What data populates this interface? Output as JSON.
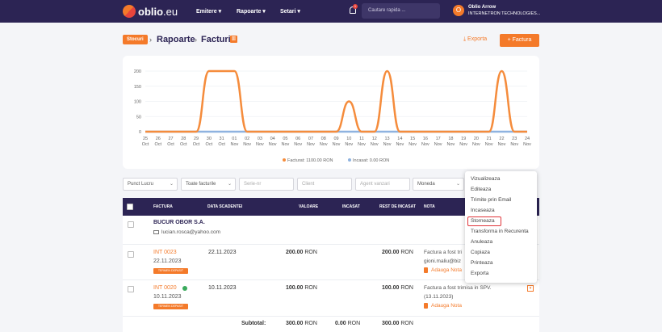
{
  "header": {
    "logo_text": "oblio",
    "logo_suffix": ".eu",
    "nav": [
      {
        "label": "Emitere ▾"
      },
      {
        "label": "Rapoarte ▾"
      },
      {
        "label": "Setari ▾"
      }
    ],
    "notifications_badge": "1",
    "search_placeholder": "Cautare rapida ...",
    "user_initial": "O",
    "user_name": "Oblio Arrow",
    "user_company": "INTERNETRON TECHNOLOGIES..."
  },
  "breadcrumb": {
    "stocuri": "Stocuri",
    "rapoarte": "Rapoarte",
    "facturi": "Facturi"
  },
  "actions": {
    "export": "Exporta",
    "add_factura": "+ Factura"
  },
  "chart_data": {
    "type": "line",
    "x": [
      "25 Oct",
      "26 Oct",
      "27 Oct",
      "28 Oct",
      "29 Oct",
      "30 Oct",
      "31 Oct",
      "01 Nov",
      "02 Nov",
      "03 Nov",
      "04 Nov",
      "05 Nov",
      "06 Nov",
      "07 Nov",
      "08 Nov",
      "09 Nov",
      "10 Nov",
      "11 Nov",
      "12 Nov",
      "13 Nov",
      "14 Nov",
      "15 Nov",
      "16 Nov",
      "17 Nov",
      "18 Nov",
      "19 Nov",
      "20 Nov",
      "21 Nov",
      "22 Nov",
      "23 Nov",
      "24 Nov"
    ],
    "yticks": [
      0,
      50,
      100,
      150,
      200
    ],
    "ylim": [
      0,
      200
    ],
    "series": [
      {
        "name": "Facturat: 1100.00 RON",
        "color": "#f58c3c",
        "values": [
          0,
          0,
          0,
          0,
          0,
          200,
          200,
          200,
          0,
          0,
          0,
          0,
          0,
          0,
          0,
          0,
          100,
          0,
          0,
          200,
          0,
          0,
          0,
          0,
          0,
          0,
          0,
          0,
          200,
          0,
          0
        ]
      },
      {
        "name": "Incasat: 0.00 RON",
        "color": "#8fb3e0",
        "values": [
          0,
          0,
          0,
          0,
          0,
          0,
          0,
          0,
          0,
          0,
          0,
          0,
          0,
          0,
          0,
          0,
          0,
          0,
          0,
          0,
          0,
          0,
          0,
          0,
          0,
          0,
          0,
          0,
          0,
          0,
          0
        ]
      }
    ],
    "legend_position": "bottom-center"
  },
  "filters": [
    {
      "text": "Punct Lucru",
      "placeholder": false,
      "select": true
    },
    {
      "text": "Toate facturile",
      "placeholder": false,
      "select": true
    },
    {
      "text": "Serie-nr",
      "placeholder": true,
      "select": false
    },
    {
      "text": "Client",
      "placeholder": true,
      "select": false
    },
    {
      "text": "Agent vanzari",
      "placeholder": true,
      "select": false
    },
    {
      "text": "Moneda",
      "placeholder": false,
      "select": true
    }
  ],
  "table": {
    "headers": {
      "factura": "FACTURA",
      "scadenta": "DATA SCADENTEI",
      "valoare": "VALOARE",
      "incasat": "INCASAT",
      "rest": "REST DE INCASAT",
      "nota": "NOTA"
    },
    "client": {
      "name": "BUCUR OBOR S.A.",
      "email": "lucian.rosca@yahoo.com"
    },
    "rows": [
      {
        "number": "INT 0023",
        "date": "22.11.2023",
        "badge": "TERMEN DEPASIT",
        "due": "22.11.2023",
        "value": "200.00",
        "currency": "RON",
        "rest": "200.00",
        "nota1": "Factura a fost tri",
        "nota2": "gioni.maliu@biz",
        "add_note": "Adauga Nota"
      },
      {
        "number": "INT 0020",
        "date": "10.11.2023",
        "badge": "TERMEN DEPASIT",
        "due": "10.11.2023",
        "value": "100.00",
        "currency": "RON",
        "rest": "100.00",
        "nota1": "Factura a fost trimisa in SPV.",
        "nota2": "(13.11.2023)",
        "add_note": "Adauga Nota"
      }
    ],
    "subtotal": {
      "label": "Subtotal:",
      "value": "300.00",
      "incasat": "0.00",
      "rest": "300.00",
      "currency": "RON"
    }
  },
  "context_menu": {
    "items": [
      "Vizualizeaza",
      "Editeaza",
      "Trimite prin Email",
      "Incaseaza",
      "Storneaza",
      "Transforma in Recurenta",
      "Anuleaza",
      "Copiaza",
      "Printeaza",
      "Exporta"
    ],
    "highlighted": "Storneaza"
  },
  "colors": {
    "brand": "#2c2454",
    "accent": "#f47a2a",
    "highlight": "#e0353a"
  }
}
